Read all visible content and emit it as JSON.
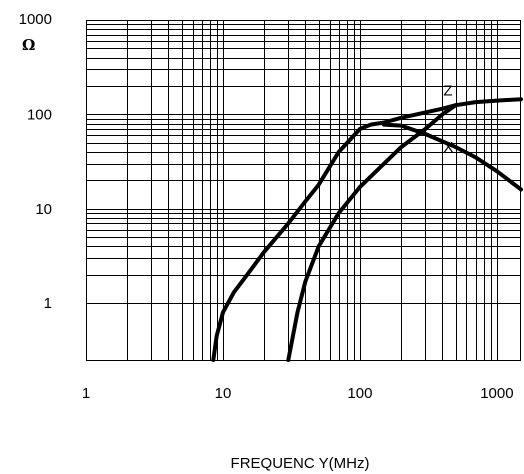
{
  "chart_data": {
    "type": "line",
    "title": "",
    "xlabel": "FREQUENC Y(MHz)",
    "ylabel": "Ω",
    "xscale": "log",
    "yscale": "log",
    "xlim": [
      1,
      1500
    ],
    "ylim": [
      0.25,
      1000
    ],
    "grid": true,
    "x_ticks": [
      "1",
      "10",
      "100",
      "1000"
    ],
    "y_ticks": [
      "1",
      "10",
      "100",
      "1000"
    ],
    "series": [
      {
        "name": "Z",
        "points": [
          [
            8.5,
            0.25
          ],
          [
            9,
            0.45
          ],
          [
            10,
            0.8
          ],
          [
            12,
            1.3
          ],
          [
            15,
            2
          ],
          [
            20,
            3.5
          ],
          [
            30,
            7
          ],
          [
            40,
            12
          ],
          [
            50,
            18
          ],
          [
            70,
            40
          ],
          [
            100,
            70
          ],
          [
            120,
            78
          ],
          [
            150,
            82
          ],
          [
            200,
            92
          ],
          [
            300,
            105
          ],
          [
            400,
            115
          ],
          [
            500,
            125
          ],
          [
            700,
            135
          ],
          [
            1000,
            140
          ],
          [
            1500,
            145
          ]
        ]
      },
      {
        "name": "X",
        "points": [
          [
            30,
            0.25
          ],
          [
            35,
            0.8
          ],
          [
            40,
            1.7
          ],
          [
            50,
            4
          ],
          [
            70,
            9
          ],
          [
            100,
            17
          ],
          [
            150,
            30
          ],
          [
            200,
            45
          ],
          [
            300,
            70
          ],
          [
            400,
            100
          ],
          [
            500,
            125
          ]
        ]
      },
      {
        "name": "",
        "points": [
          [
            150,
            78
          ],
          [
            200,
            76
          ],
          [
            300,
            62
          ],
          [
            500,
            45
          ],
          [
            700,
            35
          ],
          [
            1000,
            25
          ],
          [
            1500,
            16
          ]
        ]
      }
    ],
    "curve_labels": [
      {
        "text": "Z",
        "x": 380,
        "y": 180
      },
      {
        "text": "X",
        "x": 380,
        "y": 45
      }
    ]
  }
}
